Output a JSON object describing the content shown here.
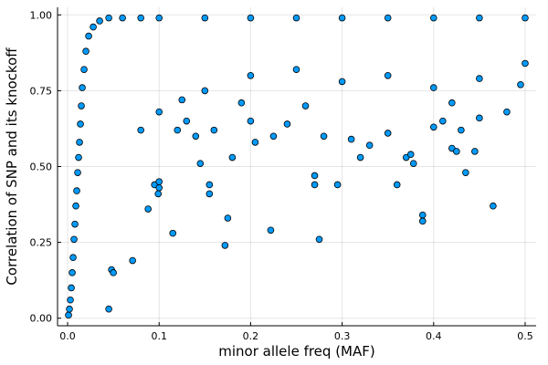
{
  "chart_data": {
    "type": "scatter",
    "title": "",
    "xlabel": "minor allele freq (MAF)",
    "ylabel": "Correlation of SNP and its knockoff",
    "xlim": [
      -0.011,
      0.512
    ],
    "ylim": [
      -0.025,
      1.025
    ],
    "xticks": [
      0.0,
      0.1,
      0.2,
      0.3,
      0.4,
      0.5
    ],
    "xtick_labels": [
      "0.0",
      "0.1",
      "0.2",
      "0.3",
      "0.4",
      "0.5"
    ],
    "yticks": [
      0.0,
      0.25,
      0.5,
      0.75,
      1.0
    ],
    "ytick_labels": [
      "0.00",
      "0.25",
      "0.50",
      "0.75",
      "1.00"
    ],
    "grid": true,
    "legend": "none",
    "marker_color": "#009AFA",
    "marker_edge_color": "#000000",
    "series": [
      {
        "points": [
          [
            0.001,
            0.01
          ],
          [
            0.002,
            0.03
          ],
          [
            0.003,
            0.06
          ],
          [
            0.004,
            0.1
          ],
          [
            0.005,
            0.15
          ],
          [
            0.006,
            0.2
          ],
          [
            0.007,
            0.26
          ],
          [
            0.008,
            0.31
          ],
          [
            0.009,
            0.37
          ],
          [
            0.01,
            0.42
          ],
          [
            0.011,
            0.48
          ],
          [
            0.012,
            0.53
          ],
          [
            0.013,
            0.58
          ],
          [
            0.014,
            0.64
          ],
          [
            0.015,
            0.7
          ],
          [
            0.016,
            0.76
          ],
          [
            0.018,
            0.82
          ],
          [
            0.02,
            0.88
          ],
          [
            0.023,
            0.93
          ],
          [
            0.028,
            0.96
          ],
          [
            0.035,
            0.98
          ],
          [
            0.045,
            0.99
          ],
          [
            0.06,
            0.99
          ],
          [
            0.08,
            0.99
          ],
          [
            0.1,
            0.99
          ],
          [
            0.15,
            0.99
          ],
          [
            0.2,
            0.99
          ],
          [
            0.25,
            0.99
          ],
          [
            0.3,
            0.99
          ],
          [
            0.35,
            0.99
          ],
          [
            0.4,
            0.99
          ],
          [
            0.45,
            0.99
          ],
          [
            0.5,
            0.99
          ],
          [
            0.045,
            0.03
          ],
          [
            0.048,
            0.16
          ],
          [
            0.05,
            0.15
          ],
          [
            0.071,
            0.19
          ],
          [
            0.088,
            0.36
          ],
          [
            0.095,
            0.44
          ],
          [
            0.1,
            0.43
          ],
          [
            0.1,
            0.45
          ],
          [
            0.099,
            0.41
          ],
          [
            0.115,
            0.28
          ],
          [
            0.12,
            0.62
          ],
          [
            0.125,
            0.72
          ],
          [
            0.13,
            0.65
          ],
          [
            0.14,
            0.6
          ],
          [
            0.145,
            0.51
          ],
          [
            0.155,
            0.41
          ],
          [
            0.155,
            0.44
          ],
          [
            0.16,
            0.62
          ],
          [
            0.172,
            0.24
          ],
          [
            0.175,
            0.33
          ],
          [
            0.18,
            0.53
          ],
          [
            0.19,
            0.71
          ],
          [
            0.2,
            0.65
          ],
          [
            0.205,
            0.58
          ],
          [
            0.222,
            0.29
          ],
          [
            0.225,
            0.6
          ],
          [
            0.24,
            0.64
          ],
          [
            0.26,
            0.7
          ],
          [
            0.27,
            0.47
          ],
          [
            0.27,
            0.44
          ],
          [
            0.275,
            0.26
          ],
          [
            0.28,
            0.6
          ],
          [
            0.295,
            0.44
          ],
          [
            0.31,
            0.59
          ],
          [
            0.32,
            0.53
          ],
          [
            0.33,
            0.57
          ],
          [
            0.35,
            0.61
          ],
          [
            0.36,
            0.44
          ],
          [
            0.37,
            0.53
          ],
          [
            0.375,
            0.54
          ],
          [
            0.378,
            0.51
          ],
          [
            0.388,
            0.34
          ],
          [
            0.388,
            0.32
          ],
          [
            0.4,
            0.63
          ],
          [
            0.41,
            0.65
          ],
          [
            0.42,
            0.56
          ],
          [
            0.42,
            0.71
          ],
          [
            0.425,
            0.55
          ],
          [
            0.43,
            0.62
          ],
          [
            0.435,
            0.48
          ],
          [
            0.445,
            0.55
          ],
          [
            0.45,
            0.66
          ],
          [
            0.465,
            0.37
          ],
          [
            0.48,
            0.68
          ],
          [
            0.495,
            0.77
          ],
          [
            0.2,
            0.8
          ],
          [
            0.25,
            0.82
          ],
          [
            0.3,
            0.78
          ],
          [
            0.35,
            0.8
          ],
          [
            0.4,
            0.76
          ],
          [
            0.45,
            0.79
          ],
          [
            0.5,
            0.84
          ],
          [
            0.15,
            0.75
          ],
          [
            0.1,
            0.68
          ],
          [
            0.08,
            0.62
          ]
        ]
      }
    ]
  }
}
